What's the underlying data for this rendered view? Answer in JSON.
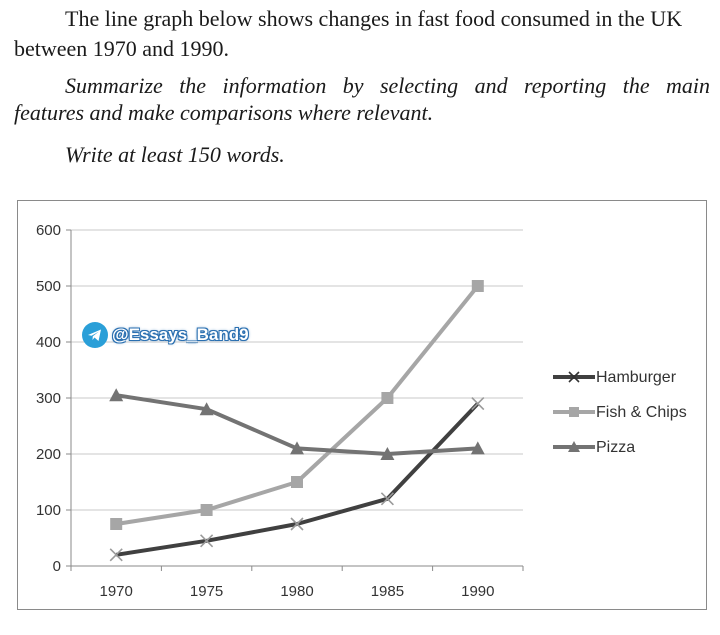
{
  "prompt": {
    "line1": "The line graph below shows changes in fast food consumed in the UK",
    "line2": "between 1970 and 1990.",
    "instruction1": "Summarize the information by selecting and reporting the main",
    "instruction2": "features and make comparisons where relevant.",
    "instruction3": "Write at least 150 words."
  },
  "watermark": {
    "text": "@Essays_Band9",
    "icon": "telegram-icon"
  },
  "chart_data": {
    "type": "line",
    "title": "",
    "xlabel": "",
    "ylabel": "",
    "x": [
      "1970",
      "1975",
      "1980",
      "1985",
      "1990"
    ],
    "ylim": [
      0,
      600
    ],
    "yticks": [
      "0",
      "100",
      "200",
      "300",
      "400",
      "500",
      "600"
    ],
    "grid": true,
    "legend_position": "right",
    "series": [
      {
        "name": "Hamburger",
        "values": [
          20,
          45,
          75,
          120,
          290
        ],
        "color": "#404040",
        "marker": "x"
      },
      {
        "name": "Fish & Chips",
        "values": [
          75,
          100,
          150,
          300,
          500
        ],
        "color": "#a6a6a6",
        "marker": "square"
      },
      {
        "name": "Pizza",
        "values": [
          305,
          280,
          210,
          200,
          210
        ],
        "color": "#737373",
        "marker": "triangle"
      }
    ]
  }
}
